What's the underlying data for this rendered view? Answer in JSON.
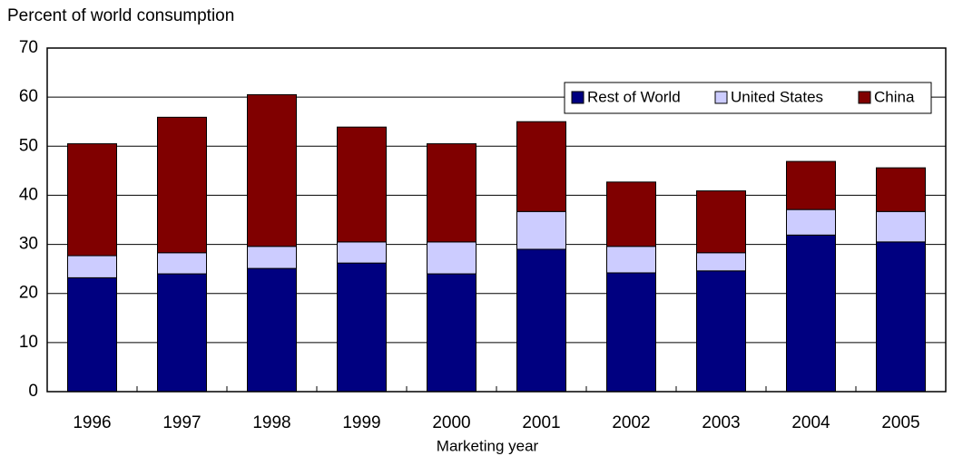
{
  "chart_data": {
    "type": "stacked-bar",
    "title": "Percent of world consumption",
    "x_label": "Marketing year",
    "categories": [
      "1996",
      "1997",
      "1998",
      "1999",
      "2000",
      "2001",
      "2002",
      "2003",
      "2004",
      "2005"
    ],
    "series": [
      {
        "name": "Rest of World",
        "color": "#000080",
        "values": [
          23.2,
          24.0,
          25.1,
          26.2,
          24.0,
          29.0,
          24.2,
          24.6,
          31.9,
          30.5
        ]
      },
      {
        "name": "United States",
        "color": "#ccccff",
        "values": [
          4.5,
          4.3,
          4.5,
          4.3,
          6.5,
          7.7,
          5.4,
          3.7,
          5.2,
          6.2
        ]
      },
      {
        "name": "China",
        "color": "#800000",
        "values": [
          22.8,
          27.6,
          30.9,
          23.4,
          20.0,
          18.3,
          13.1,
          12.6,
          9.8,
          8.9
        ]
      }
    ],
    "ylim": [
      0,
      70
    ],
    "yticks": [
      0,
      10,
      20,
      30,
      40,
      50,
      60,
      70
    ],
    "grid": true,
    "legend": "top-right"
  }
}
